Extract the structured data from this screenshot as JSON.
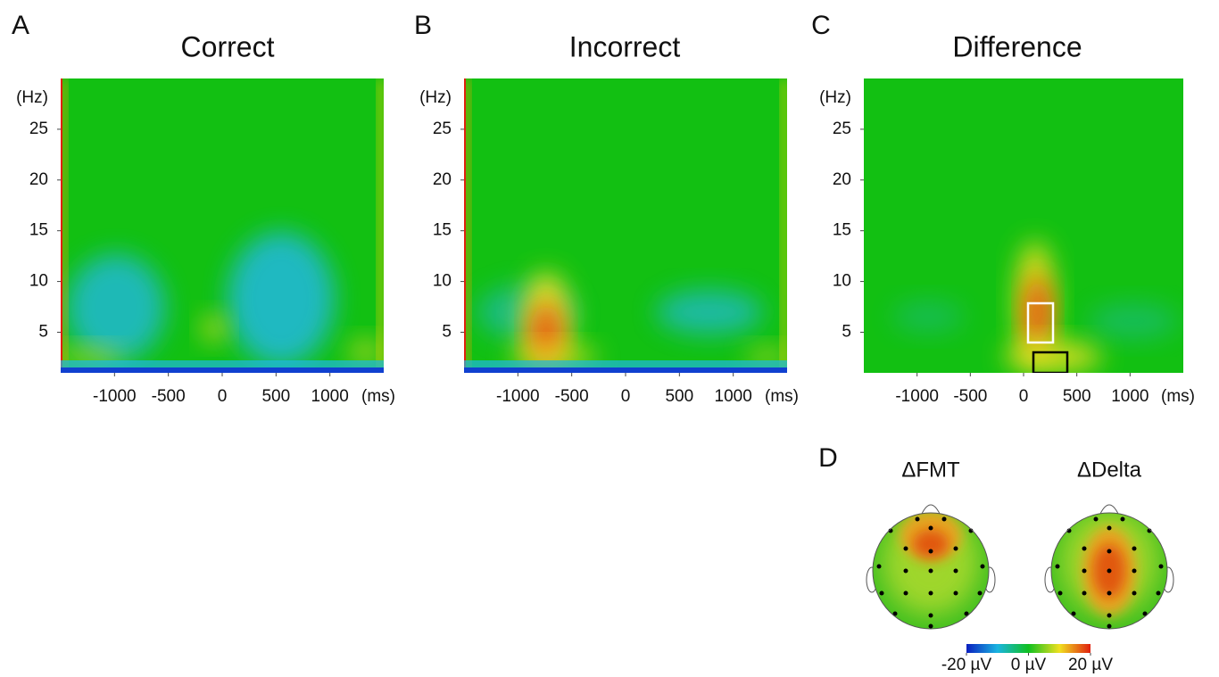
{
  "chart_data": [
    {
      "type": "heatmap",
      "panel": "A",
      "title": "Correct",
      "x_label": "(ms)",
      "y_label": "(Hz)",
      "xlim": [
        -1500,
        1500
      ],
      "ylim": [
        1,
        30
      ],
      "xticks": [
        -1000,
        -500,
        0,
        500,
        1000
      ],
      "yticks": [
        5,
        10,
        15,
        20,
        25
      ]
    },
    {
      "type": "heatmap",
      "panel": "B",
      "title": "Incorrect",
      "x_label": "(ms)",
      "y_label": "(Hz)",
      "xlim": [
        -1500,
        1500
      ],
      "ylim": [
        1,
        30
      ],
      "xticks": [
        -1000,
        -500,
        0,
        500,
        1000
      ],
      "yticks": [
        5,
        10,
        15,
        20,
        25
      ]
    },
    {
      "type": "heatmap",
      "panel": "C",
      "title": "Difference",
      "x_label": "(ms)",
      "y_label": "(Hz)",
      "xlim": [
        -1500,
        1500
      ],
      "ylim": [
        1,
        30
      ],
      "xticks": [
        -1000,
        -500,
        0,
        500,
        1000
      ],
      "yticks": [
        5,
        10,
        15,
        20,
        25
      ]
    },
    {
      "type": "topomap",
      "panel": "D",
      "maps": [
        {
          "title": "ΔFMT"
        },
        {
          "title": "ΔDelta"
        }
      ],
      "colorbar": {
        "clim": [
          -20,
          20
        ],
        "ticks": [
          {
            "value": -20,
            "label": "-20 µV"
          },
          {
            "value": 0,
            "label": "0 µV"
          },
          {
            "value": 20,
            "label": "20 µV"
          }
        ]
      }
    }
  ]
}
